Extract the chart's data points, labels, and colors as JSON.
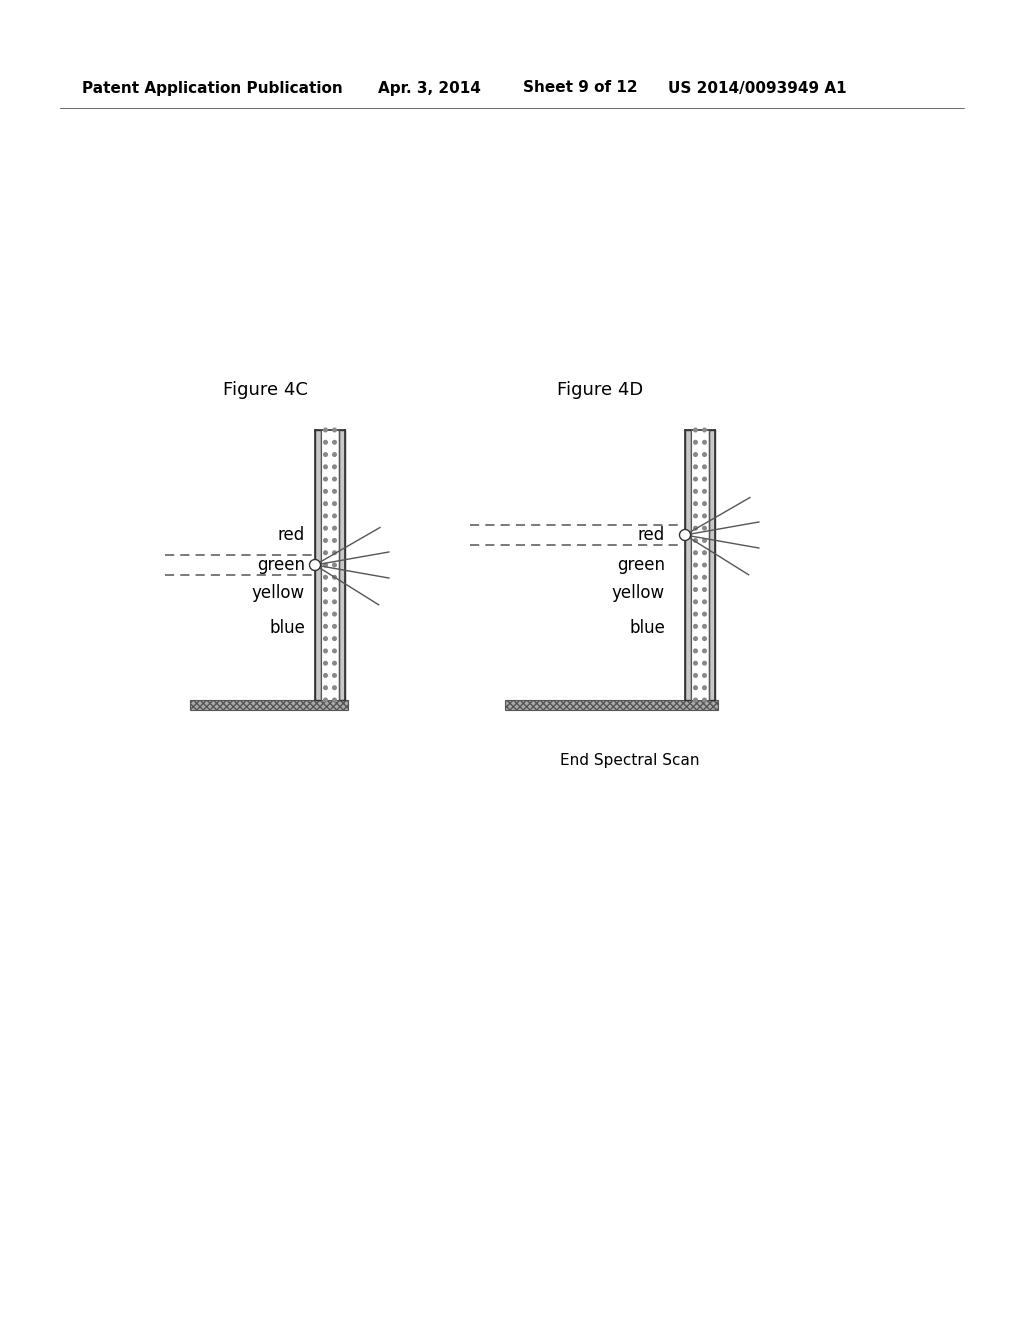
{
  "bg_color": "#ffffff",
  "header_text": "Patent Application Publication",
  "header_date": "Apr. 3, 2014",
  "header_sheet": "Sheet 9 of 12",
  "header_patent": "US 2014/0093949 A1",
  "header_fontsize": 11,
  "fig4c_title": "Figure 4C",
  "fig4d_title": "Figure 4D",
  "fig_title_fontsize": 13,
  "caption_text": "End Spectral Scan",
  "caption_fontsize": 11,
  "labels_4c": [
    "red",
    "green",
    "yellow",
    "blue"
  ],
  "labels_4d": [
    "red",
    "green",
    "yellow",
    "blue"
  ],
  "label_fontsize": 12
}
